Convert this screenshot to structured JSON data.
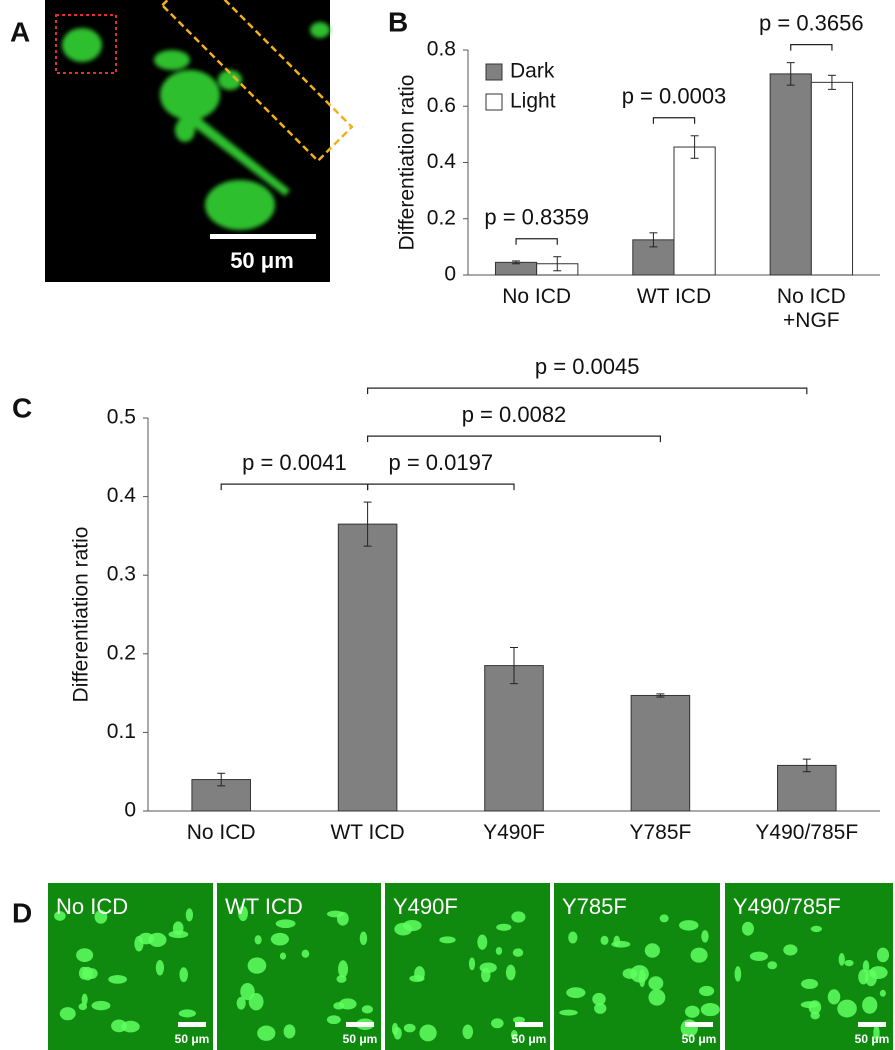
{
  "panel_labels": [
    "A",
    "B",
    "C",
    "D"
  ],
  "panel_a": {
    "scale_label": "50 μm"
  },
  "chart_data": [
    {
      "type": "bar",
      "ylabel": "Differentiation ratio",
      "categories": [
        "No ICD",
        "WT ICD",
        "No ICD\n+NGF"
      ],
      "series": [
        {
          "name": "Dark",
          "color": "#808080",
          "values": [
            0.045,
            0.125,
            0.715
          ],
          "errors": [
            0.005,
            0.025,
            0.04
          ]
        },
        {
          "name": "Light",
          "color": "#ffffff",
          "values": [
            0.04,
            0.455,
            0.685
          ],
          "errors": [
            0.025,
            0.04,
            0.025
          ]
        }
      ],
      "ylim": [
        0,
        0.8
      ],
      "yticks": [
        0,
        0.2,
        0.4,
        0.6,
        0.8
      ],
      "legend": "upper left",
      "comparisons": [
        {
          "label": "p = 0.8359",
          "groups": [
            "No ICD"
          ]
        },
        {
          "label": "p = 0.0003",
          "groups": [
            "WT ICD"
          ]
        },
        {
          "label": "p = 0.3656",
          "groups": [
            "No ICD\n+NGF"
          ]
        }
      ]
    },
    {
      "type": "bar",
      "ylabel": "Differentiation ratio",
      "categories": [
        "No ICD",
        "WT ICD",
        "Y490F",
        "Y785F",
        "Y490/785F"
      ],
      "series": [
        {
          "color": "#808080",
          "values": [
            0.04,
            0.365,
            0.185,
            0.147,
            0.058
          ],
          "errors": [
            0.008,
            0.028,
            0.023,
            0.002,
            0.008
          ]
        }
      ],
      "ylim": [
        0,
        0.5
      ],
      "yticks": [
        0,
        0.1,
        0.2,
        0.3,
        0.4,
        0.5
      ],
      "comparisons": [
        {
          "label": "p = 0.0041",
          "groups": [
            "No ICD",
            "WT ICD"
          ]
        },
        {
          "label": "p = 0.0197",
          "groups": [
            "WT ICD",
            "Y490F"
          ]
        },
        {
          "label": "p = 0.0082",
          "groups": [
            "WT ICD",
            "Y785F"
          ]
        },
        {
          "label": "p = 0.0045",
          "groups": [
            "WT ICD",
            "Y490/785F"
          ]
        }
      ]
    }
  ],
  "panel_d": {
    "panels": [
      {
        "label": "No ICD",
        "scale_label": "50 μm"
      },
      {
        "label": "WT ICD",
        "scale_label": "50 μm"
      },
      {
        "label": "Y490F",
        "scale_label": "50 μm"
      },
      {
        "label": "Y785F",
        "scale_label": "50 μm"
      },
      {
        "label": "Y490/785F",
        "scale_label": "50 μm"
      }
    ]
  }
}
